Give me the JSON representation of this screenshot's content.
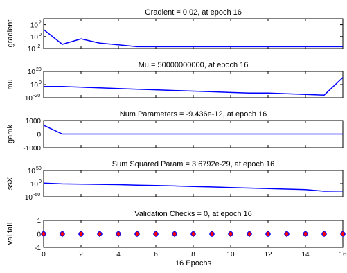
{
  "chart_data": [
    {
      "id": "gradient",
      "type": "line",
      "title": "Gradient = 0.02, at epoch 16",
      "ylabel": "gradient",
      "yscale": "log",
      "xlim": [
        0,
        16
      ],
      "ylim": [
        0.01,
        1000
      ],
      "yticks": [
        {
          "base": "10",
          "exp": "2"
        },
        {
          "base": "10",
          "exp": "0"
        },
        {
          "base": "10",
          "exp": "-2"
        }
      ],
      "ytick_values": [
        100,
        1,
        0.01
      ],
      "x": [
        0,
        1,
        2,
        3,
        4,
        5,
        6,
        7,
        8,
        9,
        10,
        11,
        12,
        13,
        14,
        15,
        16
      ],
      "y": [
        15,
        0.05,
        0.4,
        0.08,
        0.04,
        0.02,
        0.02,
        0.02,
        0.02,
        0.02,
        0.02,
        0.02,
        0.02,
        0.02,
        0.02,
        0.02,
        0.02
      ],
      "color": "#0000ff"
    },
    {
      "id": "mu",
      "type": "line",
      "title": "Mu = 50000000000, at epoch 16",
      "ylabel": "mu",
      "yscale": "log",
      "xlim": [
        0,
        16
      ],
      "ylim": [
        1e-20,
        1e+20
      ],
      "yticks": [
        {
          "base": "10",
          "exp": "20"
        },
        {
          "base": "10",
          "exp": "0"
        },
        {
          "base": "10",
          "exp": "-20"
        }
      ],
      "ytick_values": [
        1e+20,
        1,
        1e-20
      ],
      "x": [
        0,
        1,
        2,
        3,
        4,
        5,
        6,
        7,
        8,
        9,
        10,
        11,
        12,
        13,
        14,
        15,
        16
      ],
      "y": [
        0.001,
        0.001,
        0.0001,
        1e-05,
        1e-06,
        1e-07,
        1e-08,
        1e-09,
        1e-10,
        1e-11,
        1e-12,
        1e-13,
        1e-13,
        1e-14,
        1e-15,
        1e-16,
        50000000000.0
      ],
      "color": "#0000ff"
    },
    {
      "id": "gamk",
      "type": "line",
      "title": "Num Parameters = -9.436e-12, at epoch 16",
      "ylabel": "gamk",
      "yscale": "linear",
      "xlim": [
        0,
        16
      ],
      "ylim": [
        -1000,
        1000
      ],
      "yticks": [
        "1000",
        "0",
        "-1000"
      ],
      "ytick_values": [
        1000,
        0,
        -1000
      ],
      "x": [
        0,
        1,
        2,
        3,
        4,
        5,
        6,
        7,
        8,
        9,
        10,
        11,
        12,
        13,
        14,
        15,
        16
      ],
      "y": [
        650,
        0,
        0,
        0,
        0,
        0,
        0,
        0,
        0,
        0,
        0,
        0,
        0,
        0,
        0,
        0,
        0
      ],
      "color": "#0000ff"
    },
    {
      "id": "ssx",
      "type": "line",
      "title": "Sum Squared Param = 3.6792e-29, at epoch 16",
      "ylabel": "ssX",
      "yscale": "log",
      "xlim": [
        0,
        16
      ],
      "ylim": [
        1e-50,
        1e+50
      ],
      "yticks": [
        {
          "base": "10",
          "exp": "50"
        },
        {
          "base": "10",
          "exp": "0"
        },
        {
          "base": "10",
          "exp": "-50"
        }
      ],
      "ytick_values": [
        1e+50,
        1,
        1e-50
      ],
      "x": [
        0,
        1,
        2,
        3,
        4,
        5,
        6,
        7,
        8,
        9,
        10,
        11,
        12,
        13,
        14,
        15,
        16
      ],
      "y": [
        100.0,
        0.1,
        0.01,
        0.001,
        0.0001,
        1e-06,
        1e-07,
        1e-09,
        1e-11,
        1e-13,
        1e-15,
        1e-17,
        1e-19,
        1e-21,
        1e-23,
        1e-29,
        3.6792e-29
      ],
      "color": "#0000ff"
    },
    {
      "id": "valfail",
      "type": "scatter",
      "title": "Validation Checks = 0, at epoch 16",
      "ylabel": "val fail",
      "yscale": "linear",
      "xlim": [
        0,
        16
      ],
      "ylim": [
        -1,
        1
      ],
      "yticks": [
        "1",
        "0",
        "-1"
      ],
      "ytick_values": [
        1,
        0,
        -1
      ],
      "x": [
        0,
        1,
        2,
        3,
        4,
        5,
        6,
        7,
        8,
        9,
        10,
        11,
        12,
        13,
        14,
        15,
        16
      ],
      "y": [
        0,
        0,
        0,
        0,
        0,
        0,
        0,
        0,
        0,
        0,
        0,
        0,
        0,
        0,
        0,
        0,
        0
      ],
      "marker": "diamond",
      "marker_fill": "#ff0000",
      "marker_edge": "#0000ff",
      "xticks": [
        "0",
        "2",
        "4",
        "6",
        "8",
        "10",
        "12",
        "14",
        "16"
      ],
      "xtick_values": [
        0,
        2,
        4,
        6,
        8,
        10,
        12,
        14,
        16
      ],
      "xlabel": "16 Epochs"
    }
  ]
}
